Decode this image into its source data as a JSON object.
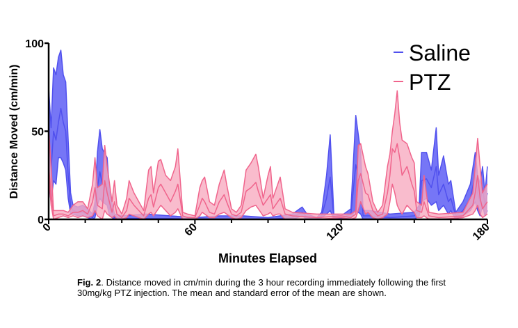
{
  "chart_data": {
    "type": "area",
    "title": "",
    "xlabel": "Minutes Elapsed",
    "ylabel": "Distance Moved (cm/min)",
    "xlim": [
      0,
      180
    ],
    "ylim": [
      0,
      100
    ],
    "xticks": [
      "0",
      "60",
      "120",
      "180"
    ],
    "yticks": [
      "0",
      "50",
      "100"
    ],
    "grid": false,
    "legend_position": "top-right",
    "point_format": [
      "minute",
      "mean_minus_sem",
      "mean",
      "mean_plus_sem"
    ],
    "series": [
      {
        "name": "Saline",
        "color": "#5050ee",
        "fill": "#6f6ff5",
        "points": [
          [
            0,
            20,
            40,
            75
          ],
          [
            1,
            10,
            28,
            52
          ],
          [
            2,
            22,
            50,
            86
          ],
          [
            3,
            20,
            45,
            82
          ],
          [
            4,
            35,
            55,
            92
          ],
          [
            5,
            35,
            63,
            96
          ],
          [
            6,
            32,
            55,
            82
          ],
          [
            7,
            28,
            50,
            78
          ],
          [
            8,
            12,
            25,
            45
          ],
          [
            9,
            3,
            7,
            15
          ],
          [
            10,
            3,
            5,
            8
          ],
          [
            12,
            2,
            4,
            7
          ],
          [
            14,
            2,
            4,
            8
          ],
          [
            16,
            1,
            3,
            6
          ],
          [
            18,
            0,
            1,
            3
          ],
          [
            19,
            1,
            5,
            10
          ],
          [
            20,
            8,
            18,
            38
          ],
          [
            21,
            12,
            27,
            51
          ],
          [
            22,
            10,
            20,
            40
          ],
          [
            24,
            8,
            18,
            35
          ],
          [
            25,
            2,
            6,
            15
          ],
          [
            27,
            0,
            1,
            3
          ],
          [
            30,
            0,
            0.5,
            2
          ],
          [
            40,
            0,
            0.5,
            3
          ],
          [
            50,
            0,
            0.5,
            2
          ],
          [
            60,
            0,
            0,
            1
          ],
          [
            70,
            0,
            0,
            2
          ],
          [
            80,
            0,
            0,
            2
          ],
          [
            90,
            0,
            0,
            1
          ],
          [
            100,
            0,
            1,
            3
          ],
          [
            104,
            2,
            4,
            7
          ],
          [
            106,
            0,
            1,
            3
          ],
          [
            110,
            0,
            0,
            1
          ],
          [
            112,
            1,
            2,
            4
          ],
          [
            114,
            3,
            12,
            25
          ],
          [
            115.5,
            5,
            24,
            48
          ],
          [
            117,
            0,
            1,
            3
          ],
          [
            120,
            0,
            0.5,
            2
          ],
          [
            124,
            1,
            3,
            6
          ],
          [
            126,
            5,
            31,
            59
          ],
          [
            128,
            3,
            20,
            38
          ],
          [
            129,
            0,
            2,
            5
          ],
          [
            132,
            0,
            2,
            5
          ],
          [
            140,
            0,
            1,
            3
          ],
          [
            150,
            0,
            2,
            4
          ],
          [
            152,
            2,
            5,
            8
          ],
          [
            153,
            10,
            22,
            38
          ],
          [
            155,
            12,
            23,
            38
          ],
          [
            157,
            8,
            18,
            28
          ],
          [
            159,
            10,
            30,
            52
          ],
          [
            160,
            5,
            14,
            25
          ],
          [
            162,
            8,
            20,
            36
          ],
          [
            164,
            3,
            10,
            20
          ],
          [
            165,
            5,
            12,
            22
          ],
          [
            167,
            0,
            2,
            4
          ],
          [
            170,
            2,
            5,
            10
          ],
          [
            173,
            5,
            12,
            20
          ],
          [
            175,
            10,
            25,
            38
          ],
          [
            176,
            5,
            15,
            25
          ],
          [
            177,
            2,
            10,
            20
          ],
          [
            178,
            8,
            18,
            30
          ],
          [
            179,
            2,
            8,
            15
          ],
          [
            180,
            5,
            15,
            30
          ]
        ]
      },
      {
        "name": "PTZ",
        "color": "#f0648c",
        "fill": "#f7abc0",
        "points": [
          [
            0,
            25,
            30,
            52
          ],
          [
            1,
            8,
            15,
            30
          ],
          [
            2,
            0,
            2,
            5
          ],
          [
            4,
            1,
            3,
            5
          ],
          [
            6,
            2,
            3,
            5
          ],
          [
            8,
            1,
            2,
            4
          ],
          [
            10,
            2,
            4,
            8
          ],
          [
            12,
            1,
            4,
            10
          ],
          [
            14,
            2,
            5,
            10
          ],
          [
            16,
            1,
            3,
            6
          ],
          [
            18,
            2,
            10,
            20
          ],
          [
            19,
            5,
            18,
            35
          ],
          [
            20,
            2,
            8,
            18
          ],
          [
            22,
            0,
            6,
            20
          ],
          [
            23,
            5,
            22,
            42
          ],
          [
            24,
            3,
            15,
            30
          ],
          [
            26,
            1,
            4,
            10
          ],
          [
            27,
            2,
            10,
            22
          ],
          [
            28,
            0,
            3,
            8
          ],
          [
            30,
            0,
            1,
            3
          ],
          [
            32,
            1,
            5,
            12
          ],
          [
            33,
            3,
            12,
            22
          ],
          [
            35,
            2,
            8,
            15
          ],
          [
            37,
            1,
            5,
            10
          ],
          [
            39,
            0,
            2,
            5
          ],
          [
            41,
            3,
            12,
            28
          ],
          [
            42,
            4,
            14,
            30
          ],
          [
            43,
            2,
            7,
            15
          ],
          [
            45,
            6,
            18,
            33
          ],
          [
            46,
            8,
            20,
            34
          ],
          [
            48,
            5,
            15,
            25
          ],
          [
            50,
            2,
            10,
            22
          ],
          [
            52,
            4,
            16,
            30
          ],
          [
            53,
            6,
            20,
            40
          ],
          [
            55,
            0,
            2,
            4
          ],
          [
            57,
            0,
            1,
            3
          ],
          [
            60,
            0,
            1,
            2
          ],
          [
            62,
            2,
            8,
            18
          ],
          [
            63,
            4,
            12,
            22
          ],
          [
            64,
            3,
            10,
            24
          ],
          [
            66,
            1,
            4,
            10
          ],
          [
            68,
            1,
            3,
            8
          ],
          [
            70,
            3,
            10,
            20
          ],
          [
            72,
            4,
            14,
            28
          ],
          [
            73,
            3,
            10,
            20
          ],
          [
            75,
            1,
            3,
            6
          ],
          [
            77,
            0,
            2,
            4
          ],
          [
            79,
            1,
            4,
            8
          ],
          [
            81,
            5,
            16,
            28
          ],
          [
            83,
            7,
            18,
            32
          ],
          [
            85,
            8,
            21,
            37
          ],
          [
            86,
            6,
            16,
            30
          ],
          [
            88,
            2,
            8,
            12
          ],
          [
            90,
            3,
            12,
            25
          ],
          [
            91,
            4,
            14,
            30
          ],
          [
            92,
            2,
            6,
            12
          ],
          [
            94,
            3,
            10,
            20
          ],
          [
            95,
            3,
            12,
            24
          ],
          [
            97,
            0,
            3,
            6
          ],
          [
            100,
            0,
            2,
            4
          ],
          [
            110,
            0,
            1,
            3
          ],
          [
            120,
            1,
            2,
            3
          ],
          [
            124,
            0,
            1,
            3
          ],
          [
            126,
            1,
            3,
            5
          ],
          [
            127,
            5,
            22,
            42
          ],
          [
            128,
            10,
            26,
            43
          ],
          [
            130,
            3,
            15,
            30
          ],
          [
            131,
            4,
            14,
            26
          ],
          [
            133,
            1,
            5,
            10
          ],
          [
            135,
            0,
            2,
            4
          ],
          [
            137,
            1,
            3,
            8
          ],
          [
            139,
            3,
            15,
            30
          ],
          [
            140,
            10,
            25,
            37
          ],
          [
            141,
            20,
            40,
            50
          ],
          [
            142,
            15,
            38,
            60
          ],
          [
            143,
            8,
            43,
            73
          ],
          [
            144,
            5,
            35,
            55
          ],
          [
            145,
            3,
            25,
            45
          ],
          [
            147,
            8,
            30,
            43
          ],
          [
            149,
            5,
            20,
            35
          ],
          [
            150,
            4,
            16,
            32
          ],
          [
            151,
            1,
            5,
            10
          ],
          [
            153,
            1,
            4,
            8
          ],
          [
            154,
            2,
            10,
            25
          ],
          [
            156,
            0,
            2,
            4
          ],
          [
            160,
            0,
            1,
            3
          ],
          [
            170,
            1,
            2,
            4
          ],
          [
            174,
            3,
            8,
            15
          ],
          [
            175,
            5,
            15,
            30
          ],
          [
            176,
            8,
            25,
            46
          ],
          [
            177,
            3,
            12,
            30
          ],
          [
            178,
            1,
            6,
            15
          ],
          [
            179,
            2,
            8,
            18
          ],
          [
            180,
            3,
            10,
            20
          ]
        ]
      }
    ]
  },
  "caption": {
    "label": "Fig. 2",
    "text": ". Distance moved in cm/min during the 3 hour recording immediately following the first 30mg/kg PTZ injection. The mean and standard error of the mean are shown."
  }
}
